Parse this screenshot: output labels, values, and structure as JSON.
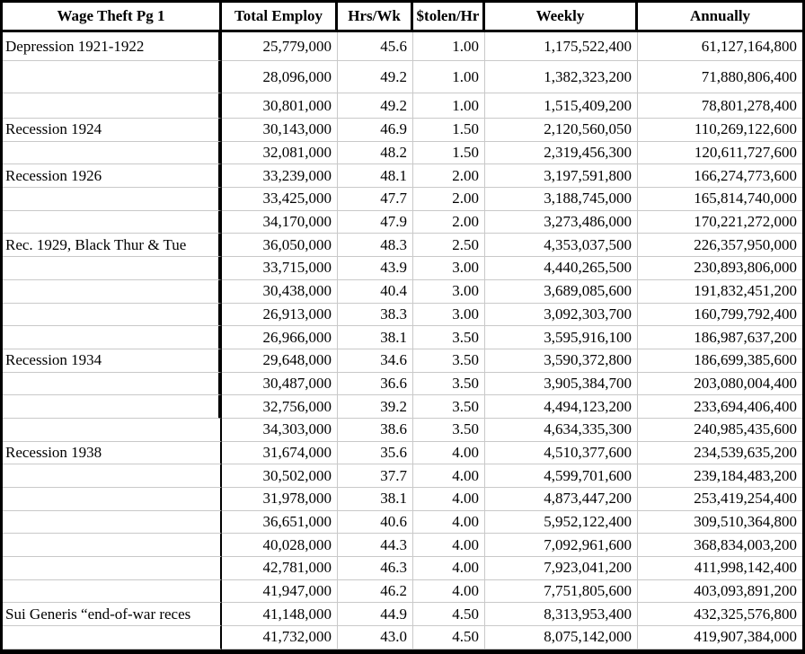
{
  "table": {
    "title": "Wage Theft Pg 1",
    "columns": [
      "Total Employ",
      "Hrs/Wk",
      "$tolen/Hr",
      "Weekly",
      "Annually"
    ],
    "rows": [
      {
        "label": "Depression 1921-1922",
        "total_employ": "25,779,000",
        "hrs_wk": "45.6",
        "stolen_hr": "1.00",
        "weekly": "1,175,522,400",
        "annually": "61,127,164,800"
      },
      {
        "label": "",
        "total_employ": "28,096,000",
        "hrs_wk": "49.2",
        "stolen_hr": "1.00",
        "weekly": "1,382,323,200",
        "annually": "71,880,806,400"
      },
      {
        "label": "",
        "total_employ": "30,801,000",
        "hrs_wk": "49.2",
        "stolen_hr": "1.00",
        "weekly": "1,515,409,200",
        "annually": "78,801,278,400"
      },
      {
        "label": "Recession 1924",
        "total_employ": "30,143,000",
        "hrs_wk": "46.9",
        "stolen_hr": "1.50",
        "weekly": "2,120,560,050",
        "annually": "110,269,122,600"
      },
      {
        "label": "",
        "total_employ": "32,081,000",
        "hrs_wk": "48.2",
        "stolen_hr": "1.50",
        "weekly": "2,319,456,300",
        "annually": "120,611,727,600"
      },
      {
        "label": "Recession 1926",
        "total_employ": "33,239,000",
        "hrs_wk": "48.1",
        "stolen_hr": "2.00",
        "weekly": "3,197,591,800",
        "annually": "166,274,773,600"
      },
      {
        "label": "",
        "total_employ": "33,425,000",
        "hrs_wk": "47.7",
        "stolen_hr": "2.00",
        "weekly": "3,188,745,000",
        "annually": "165,814,740,000"
      },
      {
        "label": "",
        "total_employ": "34,170,000",
        "hrs_wk": "47.9",
        "stolen_hr": "2.00",
        "weekly": "3,273,486,000",
        "annually": "170,221,272,000"
      },
      {
        "label": "Rec. 1929, Black Thur & Tue",
        "total_employ": "36,050,000",
        "hrs_wk": "48.3",
        "stolen_hr": "2.50",
        "weekly": "4,353,037,500",
        "annually": "226,357,950,000"
      },
      {
        "label": "",
        "total_employ": "33,715,000",
        "hrs_wk": "43.9",
        "stolen_hr": "3.00",
        "weekly": "4,440,265,500",
        "annually": "230,893,806,000"
      },
      {
        "label": "",
        "total_employ": "30,438,000",
        "hrs_wk": "40.4",
        "stolen_hr": "3.00",
        "weekly": "3,689,085,600",
        "annually": "191,832,451,200"
      },
      {
        "label": "",
        "total_employ": "26,913,000",
        "hrs_wk": "38.3",
        "stolen_hr": "3.00",
        "weekly": "3,092,303,700",
        "annually": "160,799,792,400"
      },
      {
        "label": "",
        "total_employ": "26,966,000",
        "hrs_wk": "38.1",
        "stolen_hr": "3.50",
        "weekly": "3,595,916,100",
        "annually": "186,987,637,200"
      },
      {
        "label": "Recession 1934",
        "total_employ": "29,648,000",
        "hrs_wk": "34.6",
        "stolen_hr": "3.50",
        "weekly": "3,590,372,800",
        "annually": "186,699,385,600"
      },
      {
        "label": "",
        "total_employ": "30,487,000",
        "hrs_wk": "36.6",
        "stolen_hr": "3.50",
        "weekly": "3,905,384,700",
        "annually": "203,080,004,400"
      },
      {
        "label": "",
        "total_employ": "32,756,000",
        "hrs_wk": "39.2",
        "stolen_hr": "3.50",
        "weekly": "4,494,123,200",
        "annually": "233,694,406,400"
      },
      {
        "label": "",
        "total_employ": "34,303,000",
        "hrs_wk": "38.6",
        "stolen_hr": "3.50",
        "weekly": "4,634,335,300",
        "annually": "240,985,435,600"
      },
      {
        "label": "Recession 1938",
        "total_employ": "31,674,000",
        "hrs_wk": "35.6",
        "stolen_hr": "4.00",
        "weekly": "4,510,377,600",
        "annually": "234,539,635,200"
      },
      {
        "label": "",
        "total_employ": "30,502,000",
        "hrs_wk": "37.7",
        "stolen_hr": "4.00",
        "weekly": "4,599,701,600",
        "annually": "239,184,483,200"
      },
      {
        "label": "",
        "total_employ": "31,978,000",
        "hrs_wk": "38.1",
        "stolen_hr": "4.00",
        "weekly": "4,873,447,200",
        "annually": "253,419,254,400"
      },
      {
        "label": "",
        "total_employ": "36,651,000",
        "hrs_wk": "40.6",
        "stolen_hr": "4.00",
        "weekly": "5,952,122,400",
        "annually": "309,510,364,800"
      },
      {
        "label": "",
        "total_employ": "40,028,000",
        "hrs_wk": "44.3",
        "stolen_hr": "4.00",
        "weekly": "7,092,961,600",
        "annually": "368,834,003,200"
      },
      {
        "label": "",
        "total_employ": "42,781,000",
        "hrs_wk": "46.3",
        "stolen_hr": "4.00",
        "weekly": "7,923,041,200",
        "annually": "411,998,142,400"
      },
      {
        "label": "",
        "total_employ": "41,947,000",
        "hrs_wk": "46.2",
        "stolen_hr": "4.00",
        "weekly": "7,751,805,600",
        "annually": "403,093,891,200"
      },
      {
        "label": "Sui Generis “end-of-war reces",
        "total_employ": "41,148,000",
        "hrs_wk": "44.9",
        "stolen_hr": "4.50",
        "weekly": "8,313,953,400",
        "annually": "432,325,576,800"
      },
      {
        "label": "",
        "total_employ": "41,732,000",
        "hrs_wk": "43.0",
        "stolen_hr": "4.50",
        "weekly": "8,075,142,000",
        "annually": "419,907,384,000"
      }
    ]
  },
  "colors": {
    "border": "#000000",
    "gridline": "#c9c9c9",
    "background": "#ffffff",
    "text": "#000000"
  }
}
